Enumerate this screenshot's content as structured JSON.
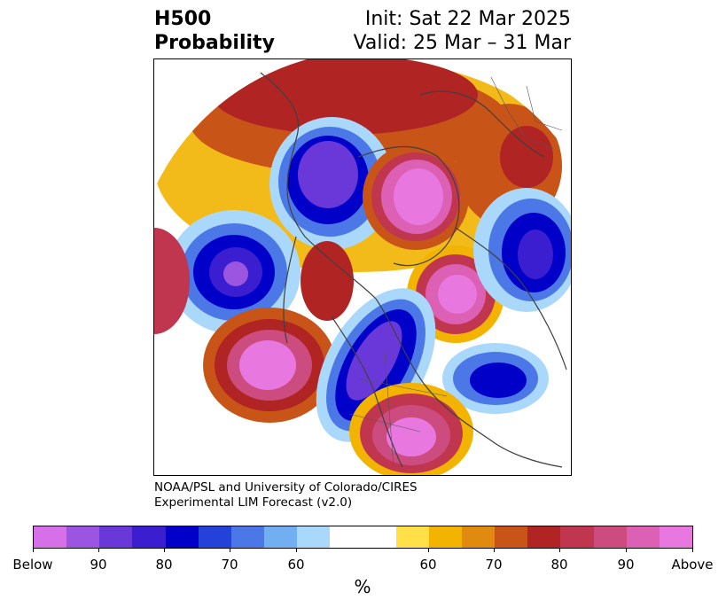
{
  "header": {
    "field": "H500",
    "product": "Probability",
    "init": "Init: Sat 22 Mar 2025",
    "valid": "Valid: 25 Mar – 31 Mar"
  },
  "credit": {
    "line1": "NOAA/PSL and University of Colorado/CIRES",
    "line2": "Experimental LIM Forecast (v2.0)"
  },
  "colorbar": {
    "unit": "%",
    "tick_labels": [
      "Below",
      "90",
      "80",
      "70",
      "60",
      "60",
      "70",
      "80",
      "90",
      "Above"
    ],
    "colors": [
      "#d670e8",
      "#9b55e0",
      "#6a38d8",
      "#3a1ed0",
      "#0000c8",
      "#2442d8",
      "#4b78e6",
      "#72aef2",
      "#aad8fa",
      "#ffffff",
      "#ffe048",
      "#f2b400",
      "#e08a10",
      "#c85418",
      "#b02424",
      "#c0364e",
      "#cc4c80",
      "#dc60b4",
      "#e878e0"
    ]
  },
  "map": {
    "colors": {
      "coast": "#404040",
      "border": "#555555",
      "frame": "#000000"
    }
  }
}
